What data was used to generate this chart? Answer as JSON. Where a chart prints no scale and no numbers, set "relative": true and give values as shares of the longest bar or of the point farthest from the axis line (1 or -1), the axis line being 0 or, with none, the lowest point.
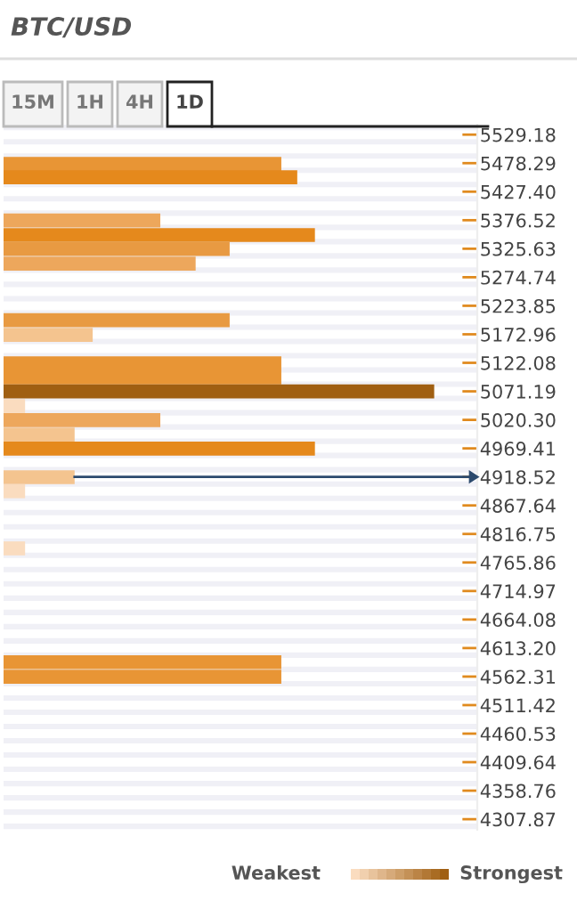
{
  "chart_data": {
    "type": "bar",
    "orientation": "horizontal",
    "relative": true,
    "title": "BTC/USD",
    "x": [
      5477,
      5453,
      5376,
      5350,
      5325,
      5299,
      5198,
      5172,
      5121,
      5096,
      5071,
      5045,
      5020,
      4994,
      4969,
      4918,
      4893,
      4791,
      4588,
      4562
    ],
    "values": [
      0.645,
      0.682,
      0.364,
      0.723,
      0.525,
      0.446,
      0.525,
      0.207,
      0.645,
      0.645,
      1,
      0.05,
      0.364,
      0.165,
      0.723,
      0.165,
      0.05,
      0.05,
      0.645,
      0.645
    ],
    "colors": [
      "#e89535",
      "#e5891c",
      "#eda75c",
      "#e5891c",
      "#e89a42",
      "#eda75c",
      "#e89a42",
      "#f4c48f",
      "#e89535",
      "#e89535",
      "#a05f12",
      "#fadcbf",
      "#eda75c",
      "#f4c48f",
      "#e5891c",
      "#f4c48f",
      "#fadcbf",
      "#fadcbf",
      "#e89535",
      "#e89535"
    ],
    "ylim": [
      4289,
      5547
    ],
    "yticks": [
      {
        "value": 5529.18,
        "label": "5529.18"
      },
      {
        "value": 5478.29,
        "label": "5478.29"
      },
      {
        "value": 5427.4,
        "label": "5427.40"
      },
      {
        "value": 5376.52,
        "label": "5376.52"
      },
      {
        "value": 5325.63,
        "label": "5325.63"
      },
      {
        "value": 5274.74,
        "label": "5274.74"
      },
      {
        "value": 5223.85,
        "label": "5223.85"
      },
      {
        "value": 5172.96,
        "label": "5172.96"
      },
      {
        "value": 5122.08,
        "label": "5122.08"
      },
      {
        "value": 5071.19,
        "label": "5071.19"
      },
      {
        "value": 5020.3,
        "label": "5020.30"
      },
      {
        "value": 4969.41,
        "label": "4969.41"
      },
      {
        "value": 4918.52,
        "label": "4918.52"
      },
      {
        "value": 4867.64,
        "label": "4867.64"
      },
      {
        "value": 4816.75,
        "label": "4816.75"
      },
      {
        "value": 4765.86,
        "label": "4765.86"
      },
      {
        "value": 4714.97,
        "label": "4714.97"
      },
      {
        "value": 4664.08,
        "label": "4664.08"
      },
      {
        "value": 4613.2,
        "label": "4613.20"
      },
      {
        "value": 4562.31,
        "label": "4562.31"
      },
      {
        "value": 4511.42,
        "label": "4511.42"
      },
      {
        "value": 4460.53,
        "label": "4460.53"
      },
      {
        "value": 4409.64,
        "label": "4409.64"
      },
      {
        "value": 4358.76,
        "label": "4358.76"
      },
      {
        "value": 4307.87,
        "label": "4307.87"
      }
    ],
    "tick_labels": "y",
    "grid": "y",
    "ref_lines": [
      {
        "axis": "y",
        "value": 4918.52,
        "color": "#2c4a6e"
      }
    ],
    "annotations": [
      "15M",
      "1H",
      "4H",
      "1D",
      "Weakest",
      "Strongest"
    ]
  }
}
